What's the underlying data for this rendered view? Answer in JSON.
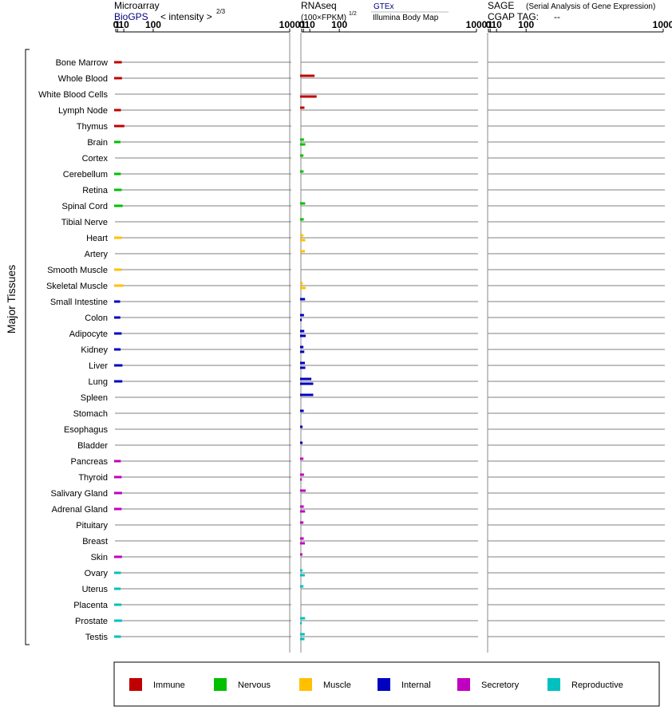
{
  "chart_data": {
    "type": "bar",
    "y_axis_title": "Major Tissues",
    "categories": [
      "Bone Marrow",
      "Whole Blood",
      "White Blood Cells",
      "Lymph Node",
      "Thymus",
      "Brain",
      "Cortex",
      "Cerebellum",
      "Retina",
      "Spinal Cord",
      "Tibial Nerve",
      "Heart",
      "Artery",
      "Smooth Muscle",
      "Skeletal Muscle",
      "Small Intestine",
      "Colon",
      "Adipocyte",
      "Kidney",
      "Liver",
      "Lung",
      "Spleen",
      "Stomach",
      "Esophagus",
      "Bladder",
      "Pancreas",
      "Thyroid",
      "Salivary Gland",
      "Adrenal Gland",
      "Pituitary",
      "Breast",
      "Skin",
      "Ovary",
      "Uterus",
      "Placenta",
      "Prostate",
      "Testis"
    ],
    "groups": [
      "Immune",
      "Immune",
      "Immune",
      "Immune",
      "Immune",
      "Nervous",
      "Nervous",
      "Nervous",
      "Nervous",
      "Nervous",
      "Nervous",
      "Muscle",
      "Muscle",
      "Muscle",
      "Muscle",
      "Internal",
      "Internal",
      "Internal",
      "Internal",
      "Internal",
      "Internal",
      "Internal",
      "Internal",
      "Internal",
      "Internal",
      "Secretory",
      "Secretory",
      "Secretory",
      "Secretory",
      "Secretory",
      "Secretory",
      "Secretory",
      "Reproductive",
      "Reproductive",
      "Reproductive",
      "Reproductive",
      "Reproductive"
    ],
    "panels": [
      {
        "title": "Microarray",
        "subtitle": "BioGPS",
        "scale_label": "< intensity >",
        "scale_exponent": "2/3",
        "ticks": [
          "0",
          "1",
          "10",
          "100",
          "1000"
        ],
        "xlim": [
          0,
          1000
        ],
        "values": [
          6.5,
          6.8,
          null,
          5.2,
          11.0,
          4.5,
          null,
          5.0,
          6.3,
          8.0,
          null,
          6.7,
          null,
          6.3,
          9.5,
          4.0,
          4.3,
          6.2,
          4.7,
          7.6,
          7.3,
          null,
          null,
          null,
          null,
          5.0,
          6.2,
          6.9,
          6.2,
          null,
          null,
          6.8,
          5.1,
          4.7,
          5.9,
          6.8,
          5.1
        ]
      },
      {
        "title": "RNAseq",
        "axis_note": "(100×FPKM)",
        "axis_note_exponent": "1/2",
        "legend_top": "GTEx",
        "legend_bottom": "Illumina Body Map",
        "ticks": [
          "0",
          "1",
          "10",
          "100",
          "1000"
        ],
        "xlim": [
          0,
          1000
        ],
        "gtex": [
          null,
          20.0,
          null,
          2.0,
          null,
          1.5,
          1.0,
          1.1,
          null,
          2.8,
          1.3,
          1.0,
          2.5,
          null,
          0.5,
          2.7,
          1.5,
          1.8,
          1.0,
          2.5,
          13.0,
          17.0,
          1.3,
          0.4,
          0.4,
          1.0,
          1.5,
          3.5,
          1.3,
          1.0,
          1.3,
          0.3,
          0.3,
          1.0,
          null,
          2.7,
          2.3
        ],
        "illumina": [
          null,
          null,
          25.0,
          null,
          null,
          3.0,
          null,
          null,
          null,
          null,
          null,
          3.0,
          null,
          null,
          3.5,
          null,
          0.02,
          3.5,
          1.8,
          3.0,
          17.0,
          null,
          null,
          null,
          null,
          null,
          0.02,
          null,
          2.7,
          null,
          2.5,
          null,
          2.4,
          null,
          null,
          0.02,
          2.0
        ]
      },
      {
        "title": "SAGE",
        "title_note": "(Serial Analysis of Gene Expression)",
        "tag_label": "CGAP TAG:",
        "tag_value": "--",
        "ticks": [
          "0",
          "1",
          "10",
          "100",
          "1000"
        ],
        "xlim": [
          0,
          1000
        ],
        "values": []
      }
    ],
    "legend": [
      {
        "name": "Immune",
        "color": "#c00000"
      },
      {
        "name": "Nervous",
        "color": "#00c000"
      },
      {
        "name": "Muscle",
        "color": "#ffc000"
      },
      {
        "name": "Internal",
        "color": "#0000c0"
      },
      {
        "name": "Secretory",
        "color": "#c000c0"
      },
      {
        "name": "Reproductive",
        "color": "#00c0c0"
      }
    ]
  }
}
